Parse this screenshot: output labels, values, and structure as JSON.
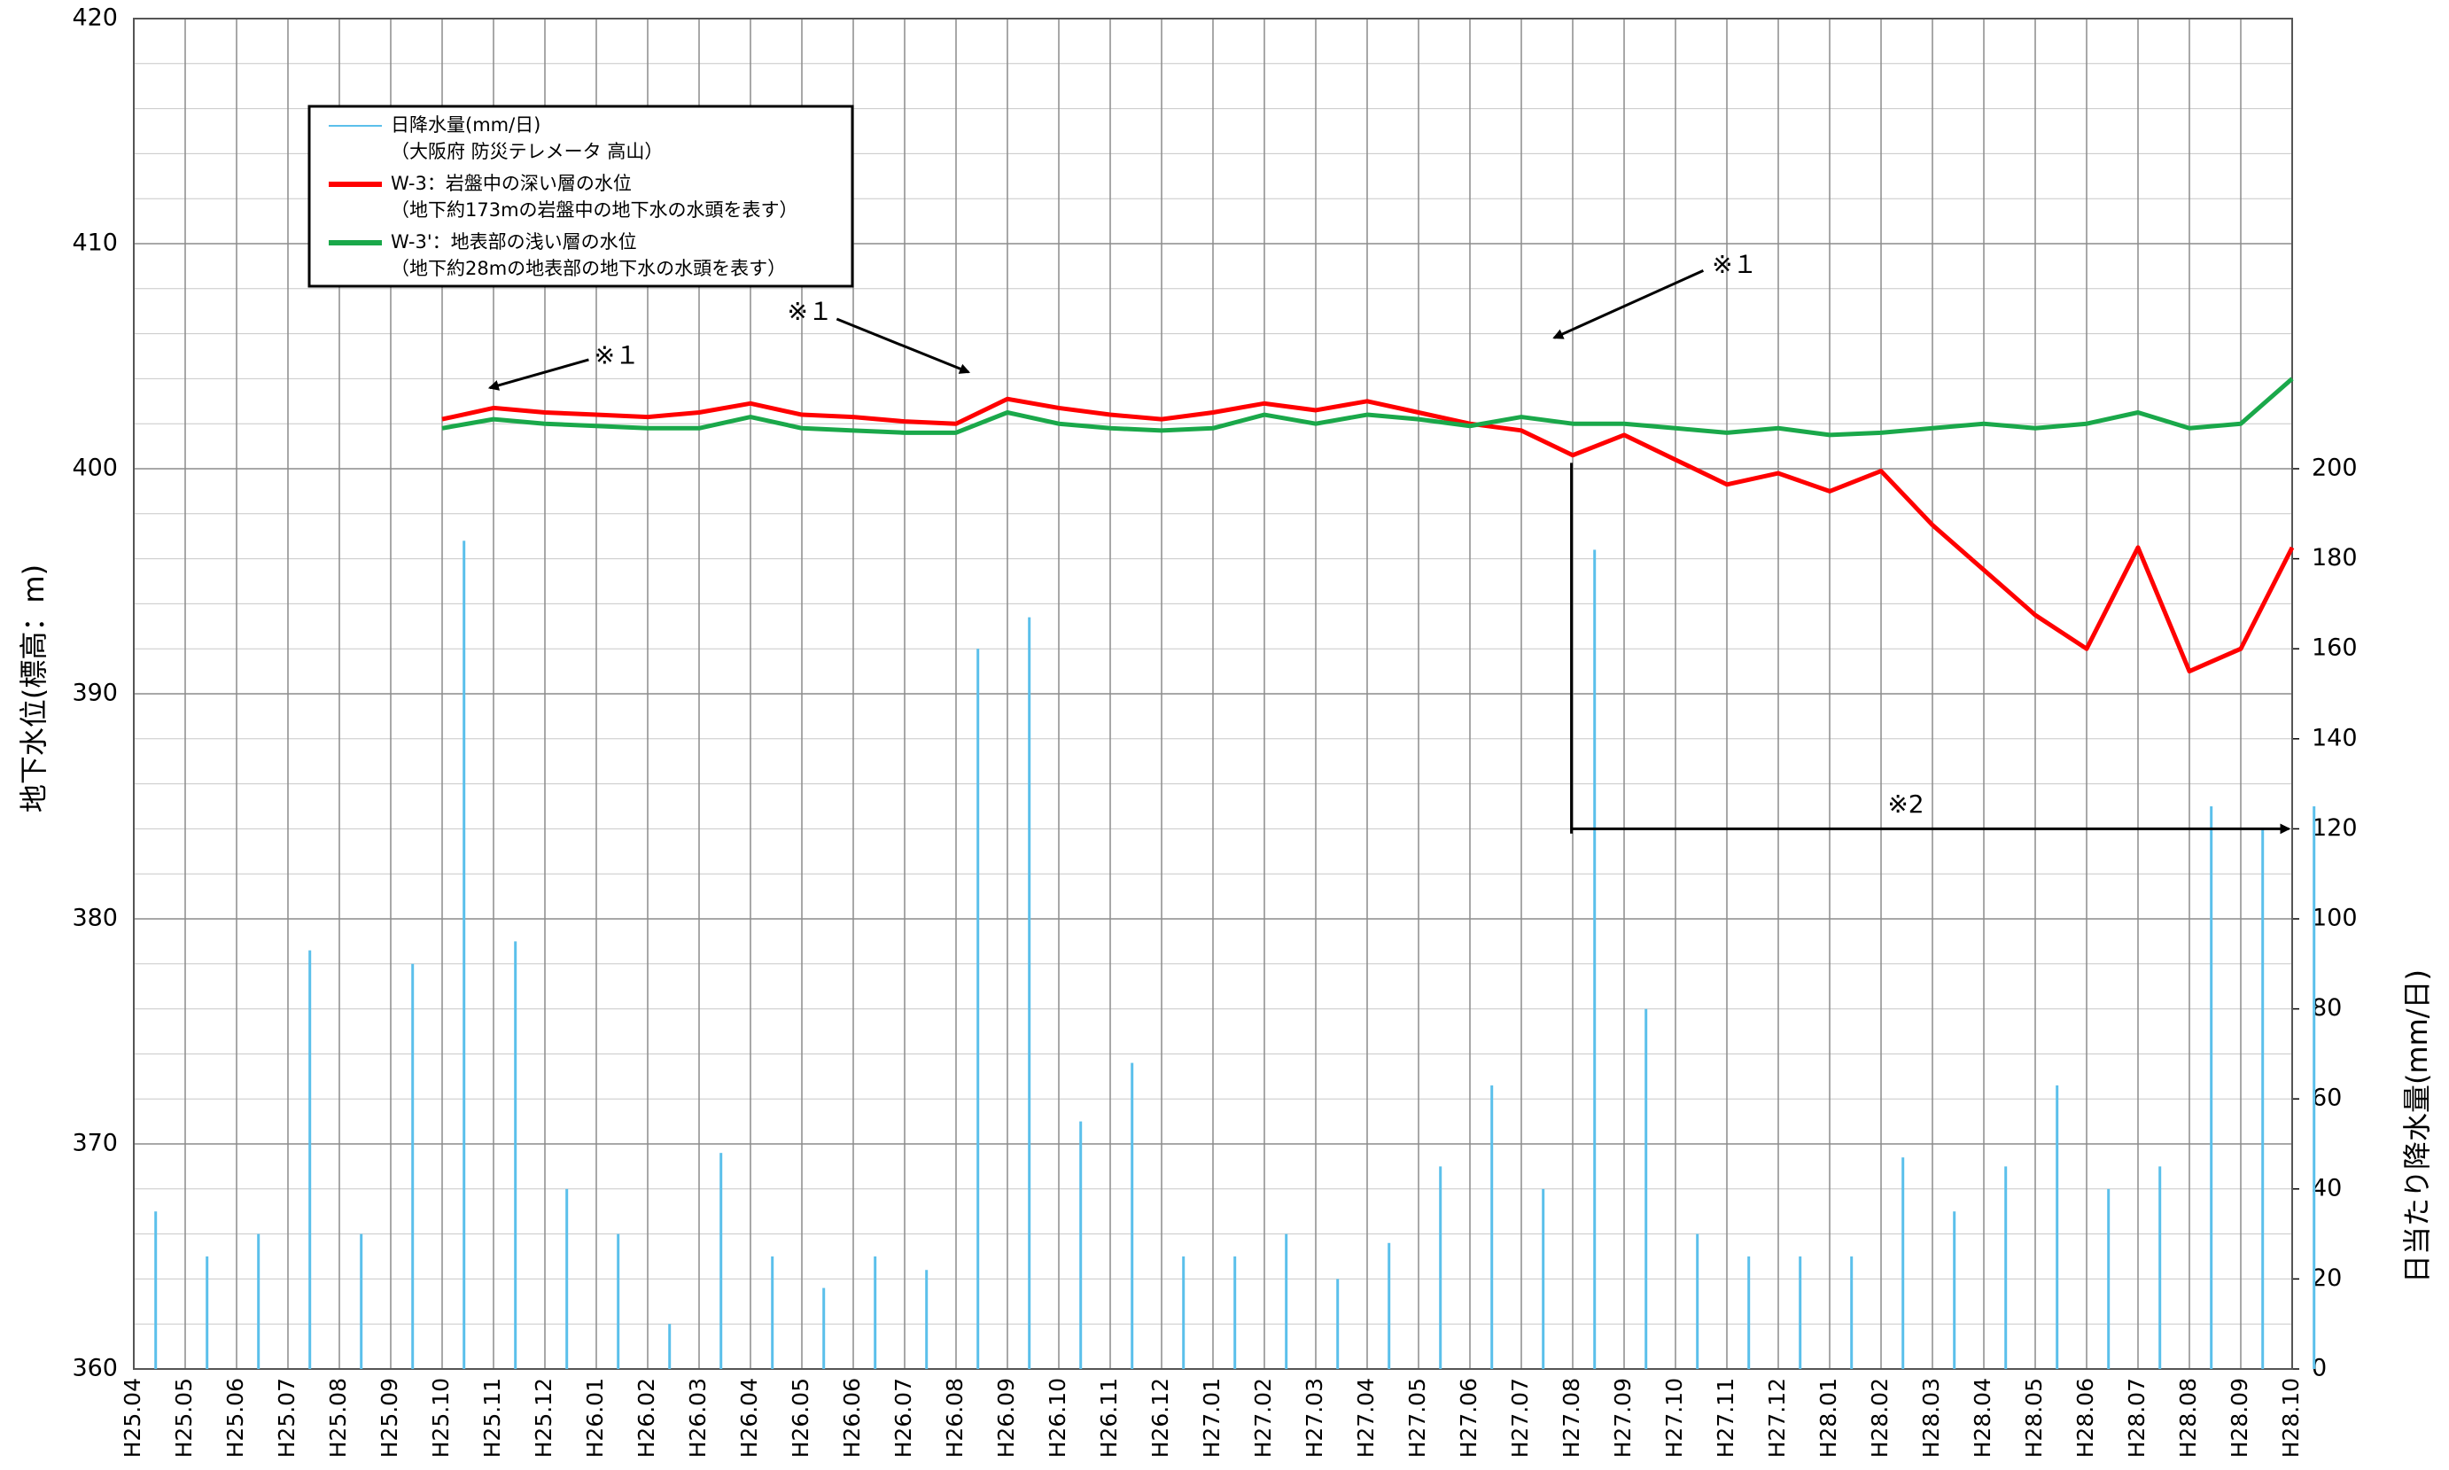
{
  "chart_data": {
    "type": "line",
    "y_label": "地下水位(標高：m)",
    "y2_label": "日当たり降水量(mm/日)",
    "categories": [
      "H25.04",
      "H25.05",
      "H25.06",
      "H25.07",
      "H25.08",
      "H25.09",
      "H25.10",
      "H25.11",
      "H25.12",
      "H26.01",
      "H26.02",
      "H26.03",
      "H26.04",
      "H26.05",
      "H26.06",
      "H26.07",
      "H26.08",
      "H26.09",
      "H26.10",
      "H26.11",
      "H26.12",
      "H27.01",
      "H27.02",
      "H27.03",
      "H27.04",
      "H27.05",
      "H27.06",
      "H27.07",
      "H27.08",
      "H27.09",
      "H27.10",
      "H27.11",
      "H27.12",
      "H28.01",
      "H28.02",
      "H28.03",
      "H28.04",
      "H28.05",
      "H28.06",
      "H28.07",
      "H28.08",
      "H28.09",
      "H28.10"
    ],
    "ylim": [
      360,
      420
    ],
    "yticks": [
      360,
      370,
      380,
      390,
      400,
      410,
      420
    ],
    "y2lim": [
      0,
      300
    ],
    "y2ticks": [
      0,
      20,
      40,
      60,
      80,
      100,
      120,
      140,
      160,
      180,
      200
    ],
    "grid": true,
    "series": [
      {
        "name": "日降水量(mm/日)",
        "description": "（大阪府 防災テレメータ 高山）",
        "color": "#5bc0eb",
        "axis": "y2",
        "type": "bar",
        "values": [
          35,
          25,
          30,
          93,
          30,
          90,
          184,
          95,
          40,
          30,
          10,
          48,
          25,
          18,
          25,
          22,
          160,
          167,
          55,
          68,
          25,
          25,
          30,
          20,
          28,
          45,
          63,
          40,
          182,
          80,
          30,
          25,
          25,
          25,
          47,
          35,
          45,
          63,
          40,
          45,
          125,
          120,
          125
        ]
      },
      {
        "name": "W-3：岩盤中の深い層の水位",
        "description": "（地下約173mの岩盤中の地下水の水頭を表す）",
        "color": "#ff0000",
        "type": "line",
        "values": [
          null,
          null,
          null,
          null,
          null,
          null,
          402.2,
          402.7,
          402.5,
          402.4,
          402.3,
          402.5,
          402.9,
          402.4,
          402.3,
          402.1,
          402.0,
          403.1,
          402.7,
          402.4,
          402.2,
          402.5,
          402.9,
          402.6,
          403.0,
          402.5,
          402.0,
          401.7,
          400.6,
          401.5,
          400.4,
          399.3,
          399.8,
          399.0,
          399.9,
          397.5,
          395.5,
          393.5,
          392.0,
          396.5,
          391.0,
          392.0,
          396.5
        ]
      },
      {
        "name": "W-3'：地表部の浅い層の水位",
        "description": "（地下約28mの地表部の地下水の水頭を表す）",
        "color": "#1aa84a",
        "type": "line",
        "values": [
          null,
          null,
          null,
          null,
          null,
          null,
          401.8,
          402.2,
          402.0,
          401.9,
          401.8,
          401.8,
          402.3,
          401.8,
          401.7,
          401.6,
          401.6,
          402.5,
          402.0,
          401.8,
          401.7,
          401.8,
          402.4,
          402.0,
          402.4,
          402.2,
          401.9,
          402.3,
          402.0,
          402.0,
          401.8,
          401.6,
          401.8,
          401.5,
          401.6,
          401.8,
          402.0,
          401.8,
          402.0,
          402.5,
          401.8,
          402.0,
          404.0
        ]
      }
    ],
    "annotations": [
      "※１",
      "※１",
      "※１",
      "※2"
    ]
  }
}
